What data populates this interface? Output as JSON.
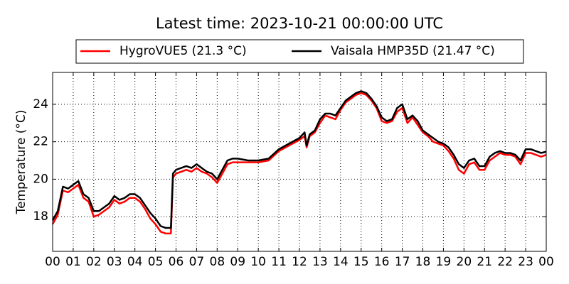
{
  "chart_data": {
    "type": "line",
    "title": "Latest time: 2023-10-21 00:00:00 UTC",
    "y_label": "Temperature (°C)",
    "x": [
      0,
      0.25,
      0.5,
      0.75,
      1,
      1.25,
      1.5,
      1.75,
      2,
      2.25,
      2.5,
      2.75,
      3,
      3.25,
      3.5,
      3.75,
      4,
      4.25,
      4.5,
      4.75,
      5,
      5.25,
      5.5,
      5.75,
      5.85,
      6,
      6.25,
      6.5,
      6.75,
      7,
      7.25,
      7.5,
      7.75,
      8,
      8.25,
      8.5,
      8.75,
      9,
      9.5,
      10,
      10.5,
      11,
      11.5,
      12,
      12.25,
      12.35,
      12.5,
      12.75,
      13,
      13.25,
      13.5,
      13.75,
      14,
      14.25,
      14.5,
      14.75,
      15,
      15.25,
      15.5,
      15.75,
      16,
      16.25,
      16.5,
      16.75,
      17,
      17.25,
      17.5,
      17.75,
      18,
      18.25,
      18.5,
      18.75,
      19,
      19.25,
      19.5,
      19.75,
      20,
      20.25,
      20.5,
      20.75,
      21,
      21.25,
      21.5,
      21.75,
      22,
      22.25,
      22.5,
      22.75,
      23,
      23.25,
      23.5,
      23.75,
      24
    ],
    "series": [
      {
        "name": "HygroVUE5 (21.3 °C)",
        "color": "#ff0000",
        "values": [
          17.6,
          18.1,
          19.4,
          19.3,
          19.5,
          19.7,
          19.0,
          18.8,
          18.0,
          18.1,
          18.3,
          18.5,
          18.9,
          18.7,
          18.8,
          19.0,
          19.0,
          18.8,
          18.4,
          17.9,
          17.6,
          17.2,
          17.1,
          17.1,
          20.1,
          20.3,
          20.4,
          20.5,
          20.4,
          20.6,
          20.4,
          20.3,
          20.1,
          19.8,
          20.3,
          20.8,
          20.9,
          20.9,
          20.9,
          20.9,
          21.0,
          21.5,
          21.8,
          22.1,
          22.3,
          21.7,
          22.3,
          22.5,
          23.0,
          23.4,
          23.3,
          23.2,
          23.7,
          24.1,
          24.3,
          24.5,
          24.6,
          24.5,
          24.2,
          23.8,
          23.1,
          23.0,
          23.1,
          23.6,
          23.8,
          23.0,
          23.3,
          22.9,
          22.5,
          22.3,
          22.0,
          21.9,
          21.8,
          21.5,
          21.1,
          20.5,
          20.3,
          20.8,
          20.9,
          20.5,
          20.5,
          21.0,
          21.2,
          21.4,
          21.3,
          21.3,
          21.2,
          20.8,
          21.4,
          21.4,
          21.3,
          21.2,
          21.3
        ]
      },
      {
        "name": "Vaisala HMP35D (21.47 °C)",
        "color": "#000000",
        "values": [
          17.8,
          18.3,
          19.6,
          19.5,
          19.7,
          19.9,
          19.2,
          19.0,
          18.3,
          18.3,
          18.5,
          18.7,
          19.1,
          18.9,
          19.0,
          19.2,
          19.2,
          19.0,
          18.6,
          18.2,
          17.9,
          17.5,
          17.4,
          17.4,
          20.3,
          20.5,
          20.6,
          20.7,
          20.6,
          20.8,
          20.6,
          20.4,
          20.3,
          20.0,
          20.5,
          21.0,
          21.1,
          21.1,
          21.0,
          21.0,
          21.1,
          21.6,
          21.9,
          22.2,
          22.5,
          21.8,
          22.4,
          22.6,
          23.2,
          23.5,
          23.5,
          23.4,
          23.8,
          24.2,
          24.4,
          24.6,
          24.7,
          24.6,
          24.3,
          23.9,
          23.3,
          23.1,
          23.2,
          23.8,
          24.0,
          23.2,
          23.4,
          23.1,
          22.6,
          22.4,
          22.2,
          22.0,
          21.9,
          21.7,
          21.3,
          20.8,
          20.6,
          21.0,
          21.1,
          20.7,
          20.7,
          21.2,
          21.4,
          21.5,
          21.4,
          21.4,
          21.3,
          21.0,
          21.6,
          21.6,
          21.5,
          21.4,
          21.47
        ]
      }
    ],
    "xlim": [
      0,
      24
    ],
    "ylim": [
      16.15,
      25.7
    ],
    "xticks": [
      {
        "value": 0,
        "label": "00"
      },
      {
        "value": 1,
        "label": "01"
      },
      {
        "value": 2,
        "label": "02"
      },
      {
        "value": 3,
        "label": "03"
      },
      {
        "value": 4,
        "label": "04"
      },
      {
        "value": 5,
        "label": "05"
      },
      {
        "value": 6,
        "label": "06"
      },
      {
        "value": 7,
        "label": "07"
      },
      {
        "value": 8,
        "label": "08"
      },
      {
        "value": 9,
        "label": "09"
      },
      {
        "value": 10,
        "label": "10"
      },
      {
        "value": 11,
        "label": "11"
      },
      {
        "value": 12,
        "label": "12"
      },
      {
        "value": 13,
        "label": "13"
      },
      {
        "value": 14,
        "label": "14"
      },
      {
        "value": 15,
        "label": "15"
      },
      {
        "value": 16,
        "label": "16"
      },
      {
        "value": 17,
        "label": "17"
      },
      {
        "value": 18,
        "label": "18"
      },
      {
        "value": 19,
        "label": "19"
      },
      {
        "value": 20,
        "label": "20"
      },
      {
        "value": 21,
        "label": "21"
      },
      {
        "value": 22,
        "label": "22"
      },
      {
        "value": 23,
        "label": "23"
      },
      {
        "value": 24,
        "label": "00"
      }
    ],
    "yticks": [
      18,
      20,
      22,
      24
    ],
    "grid": true,
    "legend": "top"
  }
}
